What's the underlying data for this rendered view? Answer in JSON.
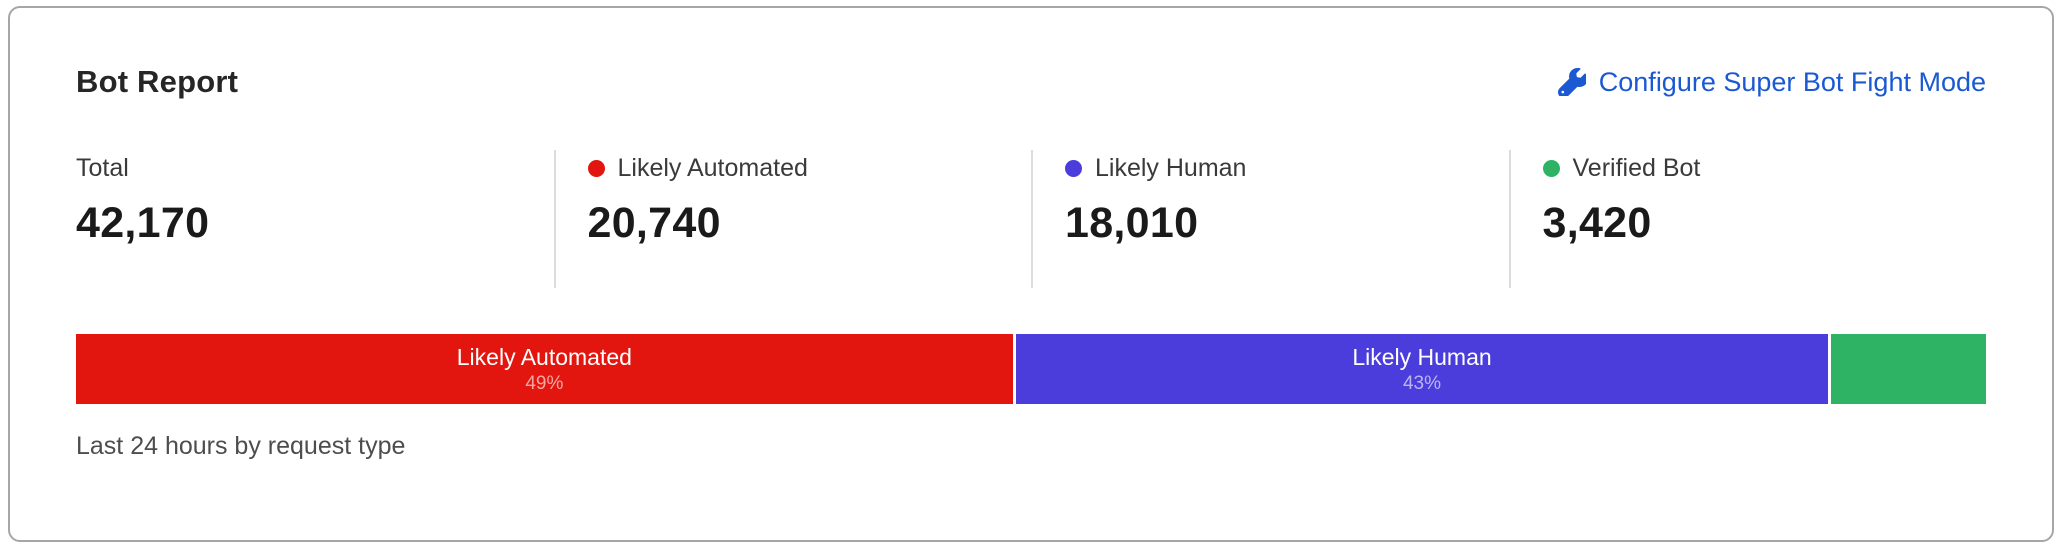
{
  "card": {
    "title": "Bot Report",
    "configure_link": {
      "label": "Configure Super Bot Fight Mode",
      "icon": "wrench-icon",
      "color": "#1b59d3"
    },
    "stats": [
      {
        "label": "Total",
        "value": "42,170",
        "dot_color": ""
      },
      {
        "label": "Likely Automated",
        "value": "20,740",
        "dot_color": "#e2160f"
      },
      {
        "label": "Likely Human",
        "value": "18,010",
        "dot_color": "#4b3ddb"
      },
      {
        "label": "Verified Bot",
        "value": "3,420",
        "dot_color": "#2eb364"
      }
    ],
    "footer": "Last 24 hours by request type"
  },
  "chart_data": {
    "type": "bar",
    "variant": "stacked-horizontal-single-row",
    "title": "Bot Report",
    "categories": [
      "Likely Automated",
      "Likely Human",
      "Verified Bot"
    ],
    "values": [
      20740,
      18010,
      3420
    ],
    "total": 42170,
    "unit": "requests",
    "footnote": "Last 24 hours by request type",
    "legend_position": "above-as-stat-cards",
    "segments": [
      {
        "label": "Likely Automated",
        "percent": 49.2,
        "percent_label": "49%",
        "color": "#e2160f",
        "show_label": true
      },
      {
        "label": "Likely Human",
        "percent": 42.7,
        "percent_label": "43%",
        "color": "#4b3ddb",
        "show_label": true
      },
      {
        "label": "Verified Bot",
        "percent": 8.1,
        "percent_label": "",
        "color": "#2eb364",
        "show_label": false
      }
    ]
  }
}
